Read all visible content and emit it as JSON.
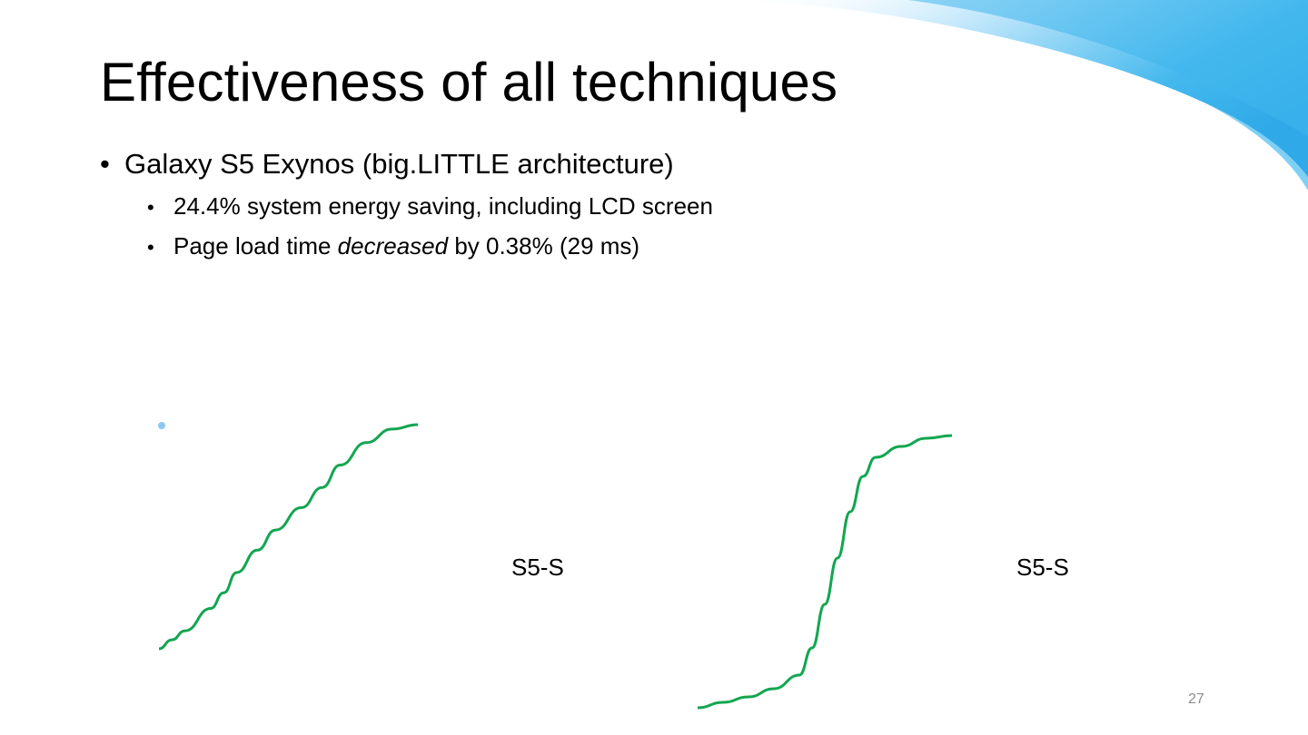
{
  "slide": {
    "title": "Effectiveness of all techniques",
    "bullets": [
      {
        "text": "Galaxy S5 Exynos (big.LITTLE architecture)"
      },
      {
        "text": "24.4% system energy saving, including LCD screen"
      },
      {
        "text_before": "Page load time ",
        "text_emph": "decreased",
        "text_after": " by 0.38% (29 ms)"
      }
    ],
    "page_number": "27",
    "bullet_glyph": "•"
  },
  "colors": {
    "curve": "#12a650",
    "marker": "#8cc8f2",
    "swoosh": "#3fb7ec"
  },
  "chart_data": [
    {
      "type": "line",
      "title": "",
      "xlabel": "",
      "ylabel": "",
      "series": [
        {
          "name": "S5-S",
          "x": [
            0,
            5,
            10,
            20,
            25,
            30,
            38,
            45,
            55,
            63,
            70,
            80,
            90,
            100
          ],
          "y": [
            0,
            4,
            8,
            18,
            25,
            34,
            44,
            53,
            63,
            72,
            82,
            92,
            98,
            100
          ]
        }
      ]
    },
    {
      "type": "line",
      "title": "",
      "xlabel": "",
      "ylabel": "",
      "series": [
        {
          "name": "S5-S",
          "x": [
            0,
            10,
            20,
            30,
            40,
            45,
            50,
            55,
            60,
            65,
            70,
            80,
            90,
            100
          ],
          "y": [
            0,
            2,
            4,
            7,
            12,
            22,
            38,
            55,
            72,
            85,
            92,
            96,
            99,
            100
          ]
        }
      ]
    }
  ]
}
